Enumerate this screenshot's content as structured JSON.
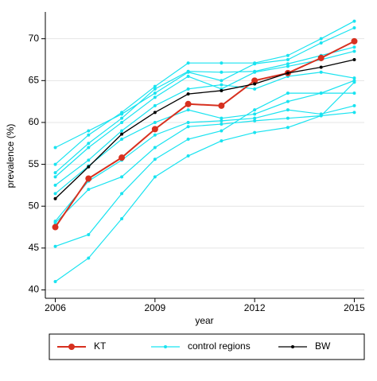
{
  "chart_data": {
    "type": "line",
    "x_label": "year",
    "y_label": "prevalence (%)",
    "x": [
      2006,
      2007,
      2008,
      2009,
      2010,
      2011,
      2012,
      2013,
      2014,
      2015
    ],
    "xlim": [
      2005.7,
      2015.3
    ],
    "xticks": [
      2006,
      2009,
      2012,
      2015
    ],
    "ylim": [
      39,
      73.2
    ],
    "yticks": [
      40,
      45,
      50,
      55,
      60,
      65,
      70
    ],
    "grid": true,
    "legend": "bottom",
    "series": [
      {
        "name": "KT",
        "color": "#d7301f",
        "values": [
          47.5,
          53.3,
          55.8,
          59.2,
          62.2,
          62.0,
          65.0,
          65.9,
          67.7,
          69.7
        ]
      },
      {
        "name": "control regions",
        "color": "#19e3f0",
        "values": [
          [
            57,
            59,
            61,
            63.5,
            66,
            65,
            67,
            67.5,
            69.5,
            71.3
          ],
          [
            55,
            58.5,
            61.2,
            64.3,
            67.1,
            67.1,
            67.1,
            68,
            70,
            72.1
          ],
          [
            54,
            57.5,
            60.5,
            64,
            66.1,
            66,
            66.1,
            67,
            68,
            69
          ],
          [
            53.5,
            57,
            60,
            63,
            65.5,
            64,
            66,
            66.7,
            67.5,
            68.5
          ],
          [
            52.5,
            55.5,
            59,
            62,
            64,
            64.5,
            64,
            65.5,
            66,
            65.3
          ],
          [
            51.5,
            54.8,
            58,
            60,
            61.5,
            60.5,
            61,
            62.5,
            63.5,
            63.5
          ],
          [
            48.2,
            53,
            55.5,
            58.5,
            60,
            60.2,
            60.5,
            61.5,
            61,
            62
          ],
          [
            48,
            52,
            53.5,
            57,
            59.5,
            59.8,
            60.2,
            60.5,
            60.8,
            61.2
          ],
          [
            45.2,
            46.6,
            51.5,
            55.6,
            58,
            59,
            61.5,
            63.5,
            63.5,
            65
          ],
          [
            41,
            43.8,
            48.5,
            53.5,
            56,
            57.8,
            58.8,
            59.4,
            60.8,
            64.8
          ]
        ]
      },
      {
        "name": "BW",
        "color": "#000000",
        "values": [
          50.9,
          54.7,
          58.6,
          61.2,
          63.4,
          63.8,
          64.6,
          65.9,
          66.6,
          67.5
        ]
      }
    ]
  }
}
